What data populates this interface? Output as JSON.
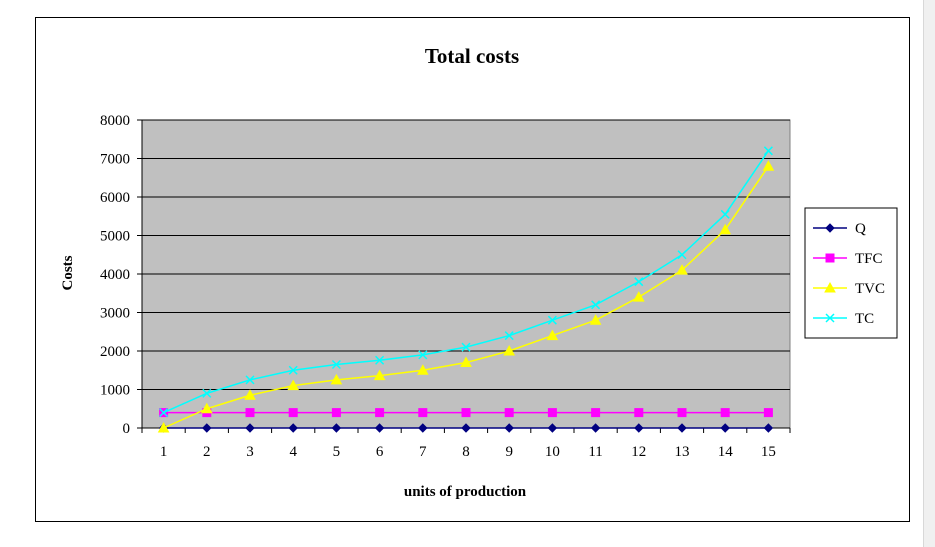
{
  "chart_data": {
    "type": "line",
    "title": "Total costs",
    "xlabel": "units of production",
    "ylabel": "Costs",
    "x": [
      1,
      2,
      3,
      4,
      5,
      6,
      7,
      8,
      9,
      10,
      11,
      12,
      13,
      14,
      15
    ],
    "ylim": [
      0,
      8000
    ],
    "yticks": [
      0,
      1000,
      2000,
      3000,
      4000,
      5000,
      6000,
      7000,
      8000
    ],
    "grid": true,
    "legend_position": "right",
    "plot_background": "#c0c0c0",
    "series": [
      {
        "name": "Q",
        "color": "#000080",
        "marker": "diamond",
        "values": [
          0,
          0,
          0,
          0,
          0,
          0,
          0,
          0,
          0,
          0,
          0,
          0,
          0,
          0,
          0
        ]
      },
      {
        "name": "TFC",
        "color": "#ff00ff",
        "marker": "square",
        "values": [
          400,
          400,
          400,
          400,
          400,
          400,
          400,
          400,
          400,
          400,
          400,
          400,
          400,
          400,
          400
        ]
      },
      {
        "name": "TVC",
        "color": "#ffff00",
        "marker": "triangle",
        "values": [
          0,
          500,
          850,
          1100,
          1250,
          1360,
          1500,
          1700,
          2000,
          2400,
          2800,
          3400,
          4100,
          5150,
          6800
        ]
      },
      {
        "name": "TC",
        "color": "#00ffff",
        "marker": "x",
        "values": [
          400,
          900,
          1250,
          1500,
          1650,
          1760,
          1900,
          2100,
          2400,
          2800,
          3200,
          3800,
          4500,
          5550,
          7200
        ]
      }
    ]
  }
}
